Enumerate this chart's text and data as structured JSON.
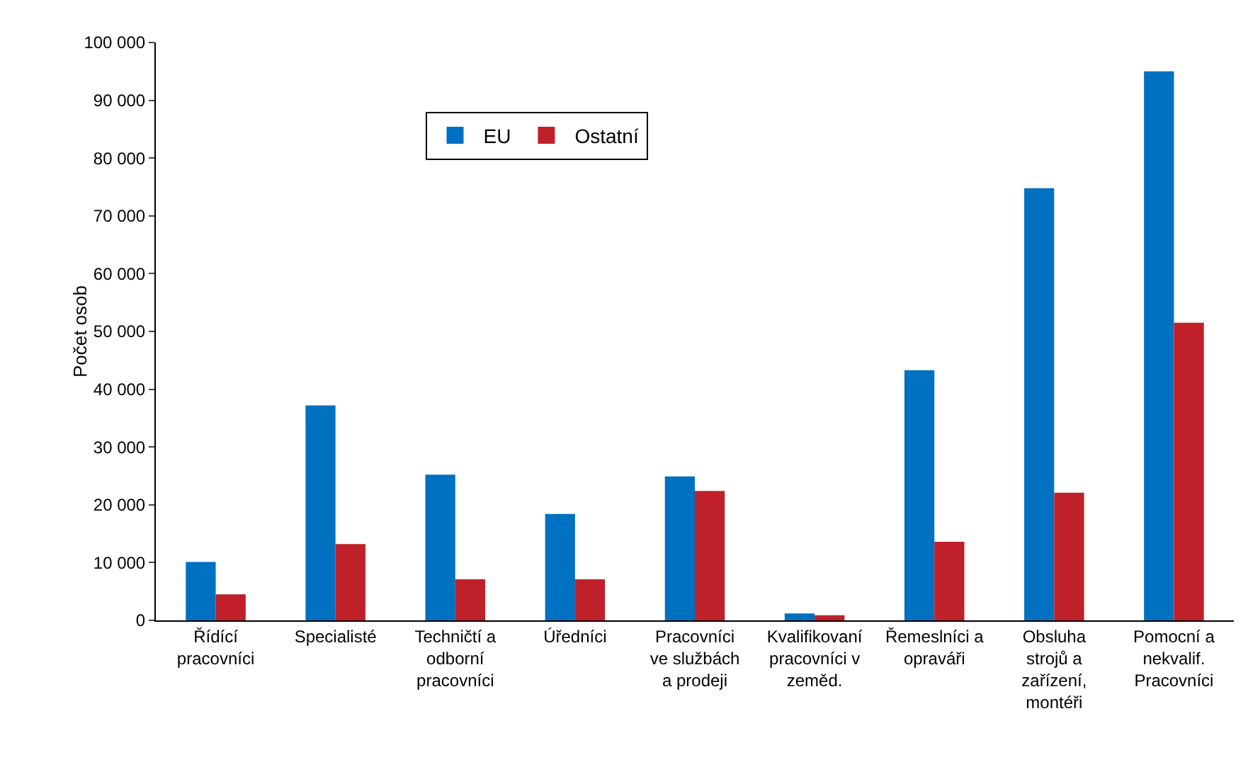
{
  "chart_data": {
    "type": "bar",
    "ylabel": "Počet osob",
    "categories": [
      "Řídící\npracovníci",
      "Specialisté",
      "Techničtí a\nodborní\npracovníci",
      "Úředníci",
      "Pracovníci\nve službách\na prodeji",
      "Kvalifikovaní\npracovníci v\nzeměd.",
      "Řemeslníci a\nopraváři",
      "Obsluha\nstrojů a\nzařízení,\nmontéři",
      "Pomocní a\nnekvalif.\nPracovníci"
    ],
    "series": [
      {
        "name": "EU",
        "color": "#0070c0",
        "values": [
          10100,
          37200,
          25200,
          18400,
          24900,
          1200,
          43300,
          74800,
          95000
        ]
      },
      {
        "name": "Ostatní",
        "color": "#c0202a",
        "values": [
          4500,
          13200,
          7100,
          7100,
          22400,
          900,
          13600,
          22100,
          51500
        ]
      }
    ],
    "ylim": [
      0,
      100000
    ],
    "yticks": [
      {
        "value": 0,
        "label": "0"
      },
      {
        "value": 10000,
        "label": "10 000"
      },
      {
        "value": 20000,
        "label": "20 000"
      },
      {
        "value": 30000,
        "label": "30 000"
      },
      {
        "value": 40000,
        "label": "40 000"
      },
      {
        "value": 50000,
        "label": "50 000"
      },
      {
        "value": 60000,
        "label": "60 000"
      },
      {
        "value": 70000,
        "label": "70 000"
      },
      {
        "value": 80000,
        "label": "80 000"
      },
      {
        "value": 90000,
        "label": "90 000"
      },
      {
        "value": 100000,
        "label": "100 000"
      }
    ],
    "grid": false,
    "legend": "top left"
  }
}
